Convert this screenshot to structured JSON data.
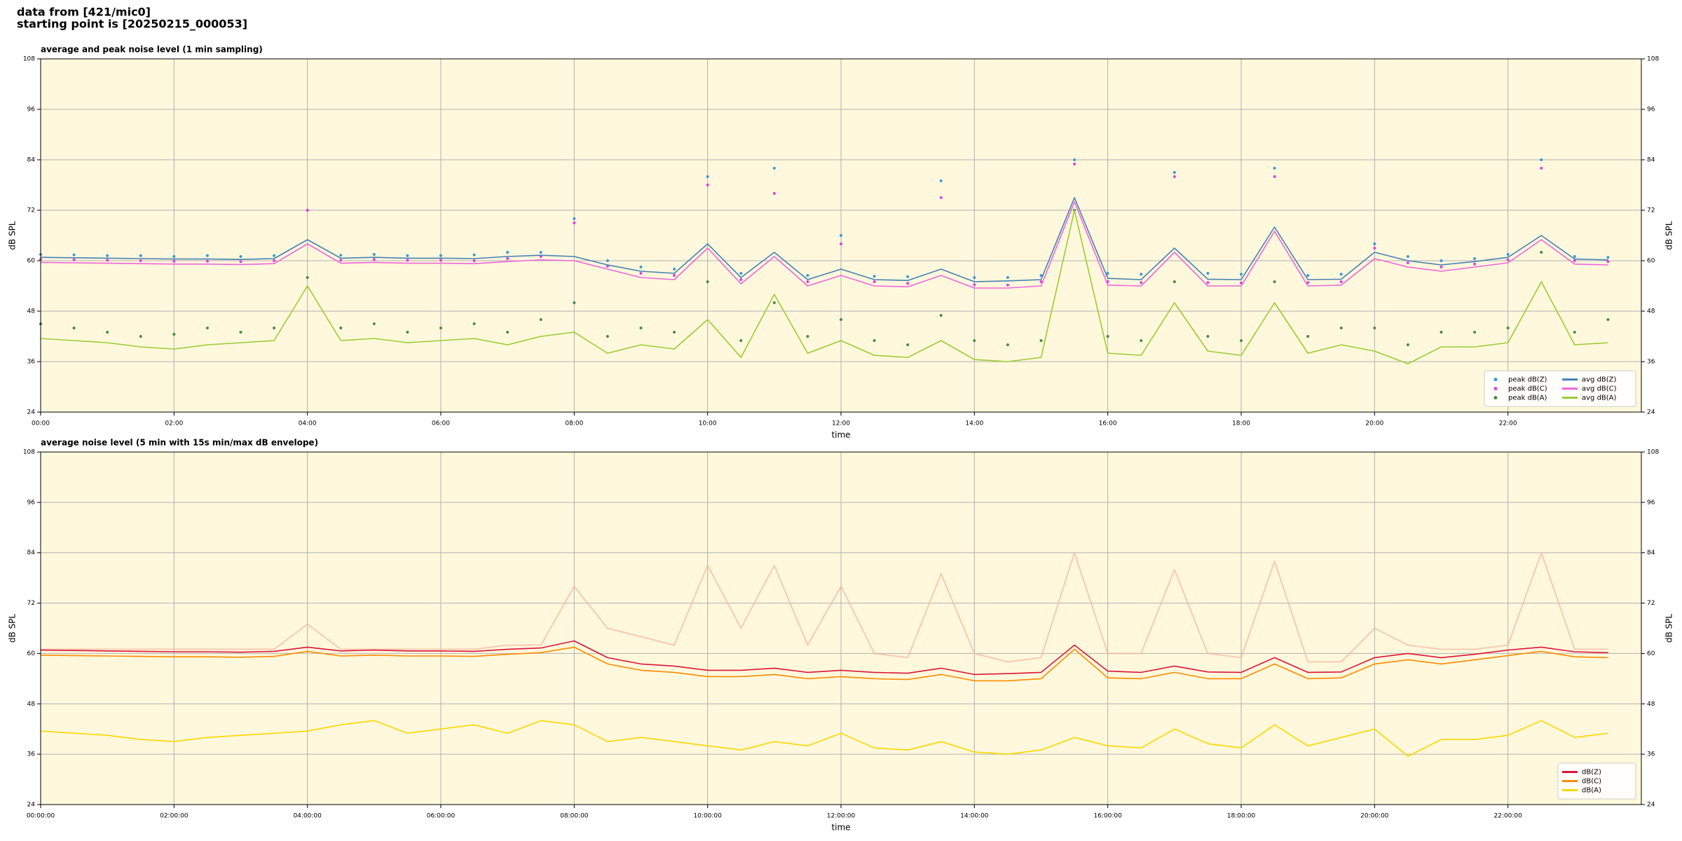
{
  "header": {
    "lines": [
      "data from [421/mic0]",
      "starting point is [20250215_000053]"
    ]
  },
  "chart_data": [
    {
      "type": "line",
      "title": "average and peak noise level (1 min sampling)",
      "xlabel": "time",
      "ylabel": "dB SPL",
      "background": "#fff8dc",
      "grid": true,
      "legend": "lower right",
      "legend_columns": 2,
      "xlim": [
        0,
        24
      ],
      "ylim": [
        24,
        108
      ],
      "xticks": [
        {
          "value": 0,
          "label": "00:00"
        },
        {
          "value": 2,
          "label": "02:00"
        },
        {
          "value": 4,
          "label": "04:00"
        },
        {
          "value": 6,
          "label": "06:00"
        },
        {
          "value": 8,
          "label": "08:00"
        },
        {
          "value": 10,
          "label": "10:00"
        },
        {
          "value": 12,
          "label": "12:00"
        },
        {
          "value": 14,
          "label": "14:00"
        },
        {
          "value": 16,
          "label": "16:00"
        },
        {
          "value": 18,
          "label": "18:00"
        },
        {
          "value": 20,
          "label": "20:00"
        },
        {
          "value": 22,
          "label": "22:00"
        }
      ],
      "yticks": [
        24,
        36,
        48,
        60,
        72,
        84,
        96,
        108
      ],
      "x": [
        0,
        0.5,
        1,
        1.5,
        2,
        2.5,
        3,
        3.5,
        4,
        4.5,
        5,
        5.5,
        6,
        6.5,
        7,
        7.5,
        8,
        8.5,
        9,
        9.5,
        10,
        10.5,
        11,
        11.5,
        12,
        12.5,
        13,
        13.5,
        14,
        14.5,
        15,
        15.5,
        16,
        16.5,
        17,
        17.5,
        18,
        18.5,
        19,
        19.5,
        20,
        20.5,
        21,
        21.5,
        22,
        22.5,
        23,
        23.5
      ],
      "series": [
        {
          "name": "peak dB(Z)",
          "style": "points",
          "color": "#3a9ad9",
          "values": [
            61.5,
            61.4,
            61.2,
            61.2,
            61,
            61.2,
            61,
            61.2,
            72,
            61.3,
            61.5,
            61.2,
            61.2,
            61.4,
            62,
            62,
            70,
            60,
            58.5,
            58,
            80,
            57,
            82,
            56.5,
            66,
            56.3,
            56.2,
            79,
            56,
            56,
            56.5,
            84,
            57,
            56.8,
            81,
            57,
            56.8,
            82,
            56.5,
            56.8,
            64,
            61,
            60,
            60.5,
            61.5,
            84,
            61,
            60.8
          ]
        },
        {
          "name": "peak dB(C)",
          "style": "points",
          "color": "#e040e0",
          "values": [
            60.3,
            60.2,
            60.1,
            60,
            59.9,
            59.9,
            59.8,
            60,
            72,
            60.1,
            60.3,
            60.1,
            60.1,
            60,
            60.5,
            61,
            69,
            58.7,
            57,
            56.5,
            78,
            55.5,
            76,
            55,
            64,
            55,
            54.6,
            75,
            54.3,
            54.2,
            55,
            83,
            55,
            54.8,
            80,
            54.8,
            54.7,
            80,
            54.8,
            55,
            63,
            59.5,
            58.5,
            59.2,
            60.2,
            82,
            60,
            59.8
          ]
        },
        {
          "name": "peak dB(A)",
          "style": "points",
          "color": "#4a8a4a",
          "values": [
            45,
            44,
            43,
            42,
            42.5,
            44,
            43,
            44,
            56,
            44,
            45,
            43,
            44,
            45,
            43,
            46,
            50,
            42,
            44,
            43,
            55,
            41,
            50,
            42,
            46,
            41,
            40,
            47,
            41,
            40,
            41,
            72,
            42,
            41,
            55,
            42,
            41,
            55,
            42,
            44,
            44,
            40,
            43,
            43,
            44,
            62,
            43,
            46
          ]
        },
        {
          "name": "avg dB(Z)",
          "style": "line",
          "color": "#4682b4",
          "values": [
            60.8,
            60.7,
            60.6,
            60.5,
            60.4,
            60.4,
            60.3,
            60.5,
            65,
            60.6,
            60.8,
            60.6,
            60.6,
            60.5,
            61,
            61.3,
            61,
            59,
            57.5,
            57,
            64,
            56,
            62,
            55.5,
            58,
            55.5,
            55.3,
            58,
            55,
            55.2,
            55.5,
            75,
            55.8,
            55.5,
            63,
            55.6,
            55.5,
            68,
            55.5,
            55.6,
            62,
            60,
            59,
            59.8,
            60.8,
            66,
            60.4,
            60.2
          ]
        },
        {
          "name": "avg dB(C)",
          "style": "line",
          "color": "#ee66dd",
          "values": [
            59.6,
            59.5,
            59.4,
            59.3,
            59.2,
            59.2,
            59.1,
            59.3,
            64,
            59.4,
            59.6,
            59.4,
            59.4,
            59.3,
            59.8,
            60.2,
            60,
            58,
            56,
            55.5,
            63,
            54.5,
            61,
            54,
            56.5,
            54,
            53.8,
            56.5,
            53.5,
            53.5,
            54,
            74,
            54.2,
            54,
            62,
            54,
            54,
            67,
            54,
            54.2,
            60.5,
            58.5,
            57.5,
            58.5,
            59.5,
            65,
            59.2,
            59
          ]
        },
        {
          "name": "avg dB(A)",
          "style": "line",
          "color": "#9acd32",
          "values": [
            41.5,
            41,
            40.5,
            39.5,
            39,
            40,
            40.5,
            41,
            54,
            41,
            41.5,
            40.5,
            41,
            41.5,
            40,
            42,
            43,
            38,
            40,
            39,
            46,
            37,
            52,
            38,
            41,
            37.5,
            37,
            41,
            36.5,
            36,
            37,
            72,
            38,
            37.5,
            50,
            38.5,
            37.5,
            50,
            38,
            40,
            38.5,
            35.5,
            39.5,
            39.5,
            40.5,
            55,
            40,
            40.5
          ]
        }
      ]
    },
    {
      "type": "line",
      "title": "average noise level (5 min with 15s min/max dB envelope)",
      "xlabel": "time",
      "ylabel": "dB SPL",
      "background": "#fff8dc",
      "grid": true,
      "legend": "lower right",
      "legend_columns": 1,
      "xlim": [
        0,
        24
      ],
      "ylim": [
        24,
        108
      ],
      "xticks": [
        {
          "value": 0,
          "label": "00:00:00"
        },
        {
          "value": 2,
          "label": "02:00:00"
        },
        {
          "value": 4,
          "label": "04:00:00"
        },
        {
          "value": 6,
          "label": "06:00:00"
        },
        {
          "value": 8,
          "label": "08:00:00"
        },
        {
          "value": 10,
          "label": "10:00:00"
        },
        {
          "value": 12,
          "label": "12:00:00"
        },
        {
          "value": 14,
          "label": "14:00:00"
        },
        {
          "value": 16,
          "label": "16:00:00"
        },
        {
          "value": 18,
          "label": "18:00:00"
        },
        {
          "value": 20,
          "label": "20:00:00"
        },
        {
          "value": 22,
          "label": "22:00:00"
        }
      ],
      "yticks": [
        24,
        36,
        48,
        60,
        72,
        84,
        96,
        108
      ],
      "x": [
        0,
        0.5,
        1,
        1.5,
        2,
        2.5,
        3,
        3.5,
        4,
        4.5,
        5,
        5.5,
        6,
        6.5,
        7,
        7.5,
        8,
        8.5,
        9,
        9.5,
        10,
        10.5,
        11,
        11.5,
        12,
        12.5,
        13,
        13.5,
        14,
        14.5,
        15,
        15.5,
        16,
        16.5,
        17,
        17.5,
        18,
        18.5,
        19,
        19.5,
        20,
        20.5,
        21,
        21.5,
        22,
        22.5,
        23,
        23.5
      ],
      "series": [
        {
          "style": "envelope",
          "color": "#f4b8a0",
          "values": [
            61,
            61,
            61,
            61,
            61,
            61,
            61,
            61,
            67,
            61,
            61,
            61,
            61,
            61,
            62,
            62,
            76,
            66,
            64,
            62,
            81,
            66,
            81,
            62,
            76,
            60,
            59,
            79,
            60,
            58,
            59,
            84,
            60,
            60,
            80,
            60,
            59,
            82,
            58,
            58,
            66,
            62,
            61,
            61,
            62,
            84,
            61,
            61
          ]
        },
        {
          "name": "dB(Z)",
          "style": "line",
          "color": "#dc143c",
          "values": [
            60.8,
            60.7,
            60.6,
            60.5,
            60.4,
            60.4,
            60.3,
            60.5,
            61.5,
            60.6,
            60.8,
            60.6,
            60.6,
            60.5,
            61,
            61.3,
            63,
            59,
            57.5,
            57,
            56,
            56,
            56.5,
            55.5,
            56,
            55.5,
            55.3,
            56.5,
            55,
            55.2,
            55.5,
            62,
            55.8,
            55.5,
            57,
            55.6,
            55.5,
            59,
            55.5,
            55.6,
            59,
            60,
            59,
            59.8,
            60.8,
            61.5,
            60.4,
            60.2
          ]
        },
        {
          "name": "dB(C)",
          "style": "line",
          "color": "#ff8c00",
          "values": [
            59.6,
            59.5,
            59.4,
            59.3,
            59.2,
            59.2,
            59.1,
            59.3,
            60.5,
            59.4,
            59.6,
            59.4,
            59.4,
            59.3,
            59.8,
            60.2,
            61.5,
            57.5,
            56,
            55.5,
            54.5,
            54.5,
            55,
            54,
            54.5,
            54,
            53.8,
            55,
            53.5,
            53.5,
            54,
            61,
            54.2,
            54,
            55.5,
            54,
            54,
            57.5,
            54,
            54.2,
            57.5,
            58.5,
            57.5,
            58.5,
            59.5,
            60.5,
            59.2,
            59
          ]
        },
        {
          "name": "dB(A)",
          "style": "line",
          "color": "#ffd700",
          "values": [
            41.5,
            41,
            40.5,
            39.5,
            39,
            40,
            40.5,
            41,
            41.5,
            43,
            44,
            41,
            42,
            43,
            41,
            44,
            43,
            39,
            40,
            39,
            38,
            37,
            39,
            38,
            41,
            37.5,
            37,
            39,
            36.5,
            36,
            37,
            40,
            38,
            37.5,
            42,
            38.5,
            37.5,
            43,
            38,
            40,
            42,
            35.5,
            39.5,
            39.5,
            40.5,
            44,
            40,
            41
          ]
        }
      ]
    }
  ]
}
